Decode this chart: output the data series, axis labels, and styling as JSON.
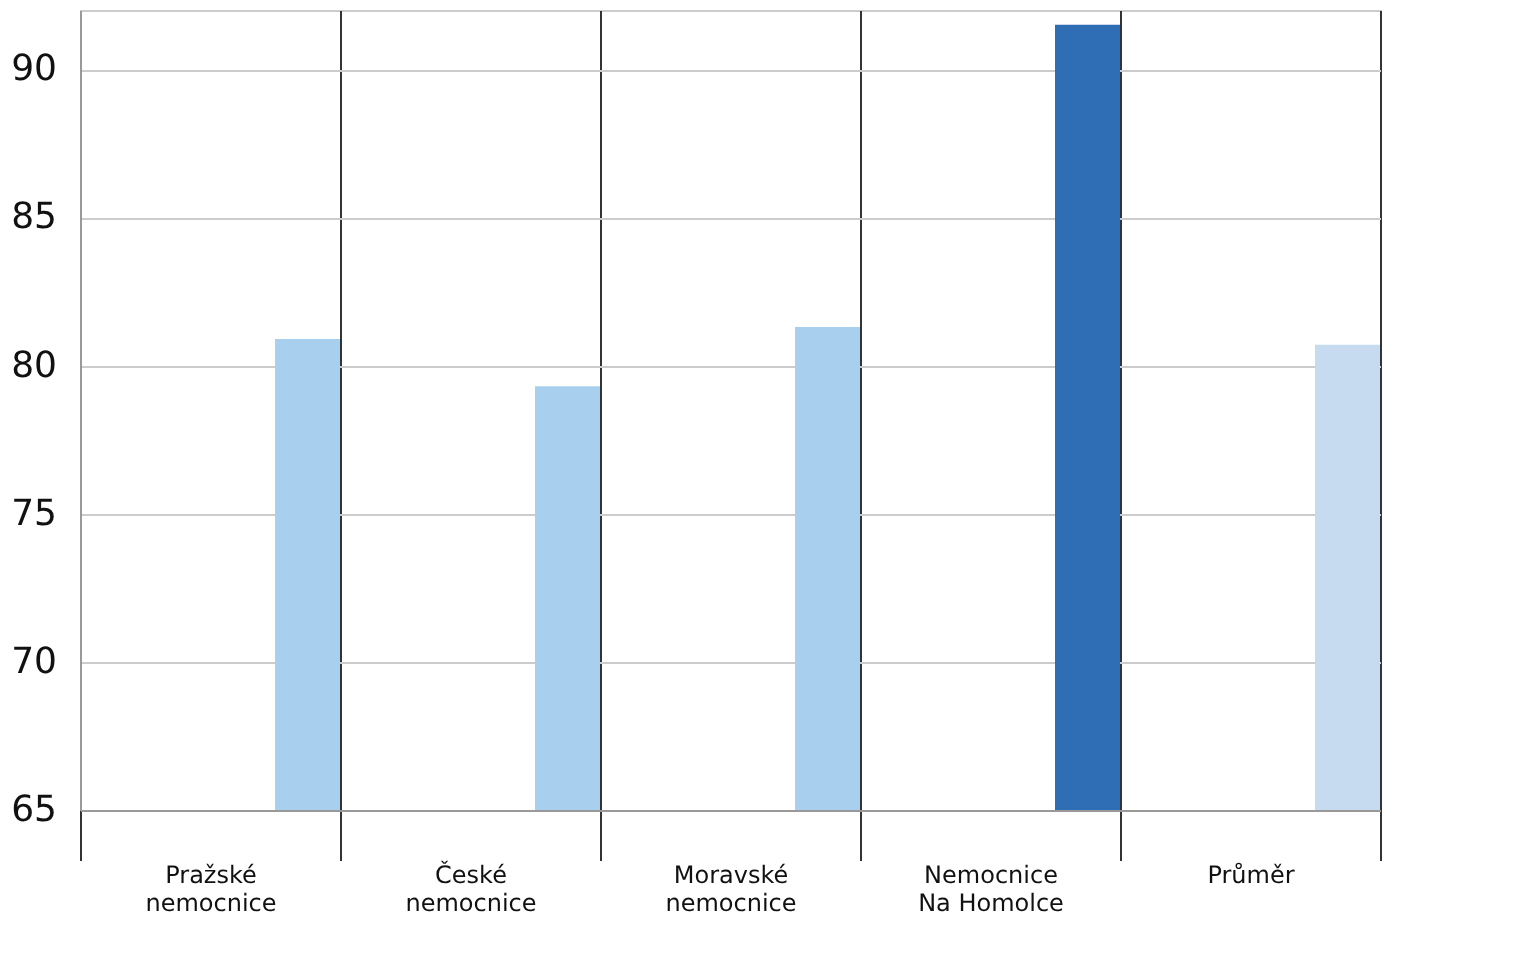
{
  "chart_data": {
    "type": "bar",
    "categories": [
      "Pražské\nnemocnice",
      "České\nnemocnice",
      "Moravské\nnemocnice",
      "Nemocnice\nNa Homolce",
      "Průměr"
    ],
    "values": [
      80.9,
      79.3,
      81.3,
      91.5,
      80.7
    ],
    "colors": [
      "#a8d0ee",
      "#a8d0ee",
      "#a8d0ee",
      "#2f6eb5",
      "#c6dbef"
    ],
    "ylim": [
      65,
      92
    ],
    "yticks": [
      65,
      70,
      75,
      80,
      85,
      90
    ],
    "grid": true
  }
}
